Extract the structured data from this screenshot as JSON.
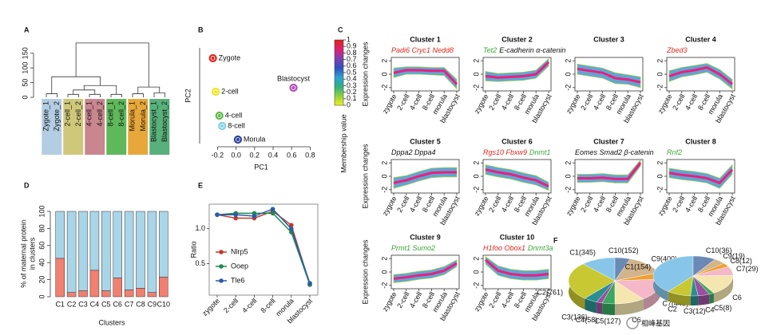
{
  "panels": [
    "A",
    "B",
    "C",
    "D",
    "E",
    "F"
  ],
  "watermark": "相峰基因",
  "chart_data": [
    {
      "type": "dendrogram",
      "ylim": [
        0,
        190
      ],
      "yticks": [
        0,
        50,
        100,
        150
      ],
      "leaves": [
        "Zygote_1",
        "Zygote_2",
        "2-cell_1",
        "2-cell_2",
        "4-cell_1",
        "4-cell_2",
        "8-cell_1",
        "8-cell_2",
        "Morula_1",
        "Morula_2",
        "Blastocyst_1",
        "Blastocyst_2"
      ],
      "group_colors": [
        "#b3cde3",
        "#cfc77a",
        "#c9868f",
        "#5fb85a",
        "#e8a73a",
        "#58b07a"
      ],
      "merges": [
        {
          "left": 0,
          "right": 1,
          "height": 12
        },
        {
          "left": 2,
          "right": 3,
          "height": 10
        },
        {
          "left": 4,
          "right": 5,
          "height": 10
        },
        {
          "left": 6,
          "right": 7,
          "height": 10
        },
        {
          "left": 8,
          "right": 9,
          "height": 12
        },
        {
          "left": 10,
          "right": 11,
          "height": 15
        },
        {
          "left": 13,
          "right": 14,
          "height": 25
        },
        {
          "left": 18,
          "right": 15,
          "height": 40
        },
        {
          "left": 12,
          "right": 19,
          "height": 70
        },
        {
          "left": 16,
          "right": 17,
          "height": 35
        },
        {
          "left": 20,
          "right": 21,
          "height": 185
        }
      ]
    },
    {
      "type": "scatter",
      "xlabel": "PC1",
      "ylabel": "PC2",
      "xlim": [
        -0.35,
        0.9
      ],
      "xticks": [
        -0.2,
        {
          "value": 0,
          "label": "0.0"
        },
        0.2,
        0.4,
        0.6,
        0.8
      ],
      "ylim": [
        -0.6,
        0.6
      ],
      "labels": [
        "Zygote",
        "2-cell",
        "4-cell",
        "8-cell",
        "Morula",
        "Blastocyst"
      ],
      "x": [
        -0.25,
        -0.22,
        -0.18,
        -0.15,
        0.02,
        0.62
      ],
      "y": [
        0.47,
        0.05,
        -0.25,
        -0.38,
        -0.55,
        0.1
      ],
      "colors": [
        "#e0261c",
        "#f2e422",
        "#5cb848",
        "#7fd0e0",
        "#2a3f9a",
        "#b04fb8"
      ]
    },
    {
      "type": "cluster-lines",
      "ylabel": "Expression changes",
      "categories": [
        "zygote",
        "2-cell",
        "4-cell",
        "8-cell",
        "morula",
        "blastocyst"
      ],
      "ylim": [
        -2.5,
        2.5
      ],
      "yticks": [
        -2,
        0,
        2
      ],
      "band_color": "#2f86c4",
      "line_color": "#e8207d",
      "colorbar": {
        "title": "Membership value",
        "ticks": [
          0,
          0.1,
          0.2,
          0.3,
          0.4,
          0.5,
          0.6,
          0.7,
          0.8,
          0.9,
          1
        ],
        "colors": [
          "#f0f020",
          "#8fd040",
          "#30b080",
          "#30a0d0",
          "#3050c0",
          "#8040b0",
          "#e02070",
          "#e0201c"
        ]
      },
      "clusters": [
        {
          "title": "Cluster 1",
          "genes": [
            {
              "text": "Padi6 Cryc1 Nedd8",
              "color": "#e0261c"
            }
          ],
          "values": [
            0.2,
            0.6,
            0.6,
            0.5,
            0.5,
            -1.5
          ],
          "lower": [
            -0.5,
            0,
            0,
            -0.1,
            -0.2,
            -2.2
          ],
          "upper": [
            0.9,
            1.1,
            1.1,
            1,
            1,
            -0.8
          ]
        },
        {
          "title": "Cluster 2",
          "genes": [
            {
              "text": "Tet2",
              "color": "#3aa63a"
            },
            {
              "text": "E-cadherin α-catenin",
              "color": "#111111"
            }
          ],
          "values": [
            -0.3,
            -0.5,
            -0.4,
            -0.3,
            0,
            1.8
          ],
          "lower": [
            -1,
            -1.1,
            -1,
            -0.9,
            -0.6,
            1.2
          ],
          "upper": [
            0.4,
            0.1,
            0.2,
            0.3,
            0.6,
            2.3
          ]
        },
        {
          "title": "Cluster 3",
          "genes": [],
          "values": [
            0.8,
            0.5,
            0.2,
            -0.6,
            -0.8,
            -1.2
          ],
          "lower": [
            0,
            -0.3,
            -0.6,
            -1.4,
            -1.5,
            -2
          ],
          "upper": [
            1.5,
            1.2,
            0.9,
            0.2,
            -0.1,
            -0.4
          ]
        },
        {
          "title": "Cluster 4",
          "genes": [
            {
              "text": "Zbed3",
              "color": "#e0261c"
            }
          ],
          "values": [
            -0.3,
            0.3,
            0.6,
            1,
            0,
            -1.5
          ],
          "lower": [
            -1.1,
            -0.4,
            -0.1,
            0.3,
            -0.7,
            -2.2
          ],
          "upper": [
            0.5,
            1,
            1.3,
            1.6,
            0.7,
            -0.8
          ]
        },
        {
          "title": "Cluster 5",
          "genes": [
            {
              "text": "Dppa2 Dppa4",
              "color": "#111111"
            }
          ],
          "values": [
            -1,
            -0.6,
            0,
            0.5,
            0.6,
            0.6
          ],
          "lower": [
            -1.8,
            -1.3,
            -0.7,
            -0.2,
            -0.1,
            -0.1
          ],
          "upper": [
            -0.2,
            0.1,
            0.7,
            1.2,
            1.3,
            1.3
          ]
        },
        {
          "title": "Cluster 6",
          "genes": [
            {
              "text": "Rgs10 Fbxw9",
              "color": "#e0261c"
            },
            {
              "text": "Dnmt1",
              "color": "#3aa63a"
            }
          ],
          "values": [
            1,
            0.6,
            0.3,
            -0.2,
            -0.6,
            -1.5
          ],
          "lower": [
            0.3,
            -0.1,
            -0.4,
            -0.9,
            -1.3,
            -2.1
          ],
          "upper": [
            1.7,
            1.3,
            1,
            0.5,
            0.1,
            -0.9
          ]
        },
        {
          "title": "Cluster 7",
          "genes": [
            {
              "text": "Eomes Smad2 β-catenin",
              "color": "#111111"
            }
          ],
          "values": [
            -0.3,
            -0.3,
            -0.2,
            -0.4,
            -0.4,
            2
          ],
          "lower": [
            -0.9,
            -0.9,
            -0.8,
            -1,
            -1,
            1.5
          ],
          "upper": [
            0.3,
            0.3,
            0.4,
            0.2,
            0.2,
            2.4
          ]
        },
        {
          "title": "Cluster 8",
          "genes": [
            {
              "text": "Rnf2",
              "color": "#3aa63a"
            }
          ],
          "values": [
            0.5,
            0.2,
            0,
            -0.3,
            -1,
            1
          ],
          "lower": [
            -0.2,
            -0.5,
            -0.7,
            -1,
            -1.8,
            0.3
          ],
          "upper": [
            1.2,
            0.9,
            0.7,
            0.4,
            -0.3,
            1.7
          ]
        },
        {
          "title": "Cluster 9",
          "genes": [
            {
              "text": "Prmt1 Sumo2",
              "color": "#3aa63a"
            }
          ],
          "values": [
            -1,
            -0.8,
            -0.5,
            -0.3,
            0.2,
            1.3
          ],
          "lower": [
            -1.6,
            -1.4,
            -1.1,
            -0.9,
            -0.4,
            0.8
          ],
          "upper": [
            -0.4,
            -0.2,
            0.1,
            0.3,
            0.8,
            1.8
          ]
        },
        {
          "title": "Cluster 10",
          "genes": [
            {
              "text": "H1foo Obox1",
              "color": "#e0261c"
            },
            {
              "text": "Dnmt3a",
              "color": "#3aa63a"
            }
          ],
          "values": [
            1.8,
            0.2,
            -0.3,
            -0.5,
            -0.5,
            -0.3
          ],
          "lower": [
            1.2,
            -0.5,
            -1,
            -1.2,
            -1.2,
            -1
          ],
          "upper": [
            2.3,
            0.9,
            0.4,
            0.2,
            0.2,
            0.4
          ]
        }
      ]
    },
    {
      "type": "stacked-bar",
      "ylabel": [
        "% of maternal protein",
        "in clusters"
      ],
      "xlabel": "Clusters",
      "categories": [
        "C1",
        "C2",
        "C3",
        "C4",
        "C5",
        "C6",
        "C7",
        "C8",
        "C9",
        "C10"
      ],
      "ylim": [
        0,
        100
      ],
      "yticks": [
        0,
        20,
        40,
        60,
        80,
        100
      ],
      "series": [
        {
          "color": "#f08070",
          "values": [
            45,
            5,
            7,
            31,
            7,
            22,
            8,
            10,
            5,
            23
          ]
        },
        {
          "color": "#a9d5e8",
          "values": [
            55,
            95,
            93,
            69,
            93,
            78,
            92,
            90,
            95,
            77
          ]
        }
      ]
    },
    {
      "type": "line",
      "ylabel": "Ratio",
      "categories": [
        "zygote",
        "2-cell",
        "4-cell",
        "8-cell",
        "morula",
        "blastocyst"
      ],
      "ylim": [
        0.05,
        1.35
      ],
      "yticks": [
        0.5,
        {
          "value": 1,
          "label": "1.0"
        }
      ],
      "series": [
        {
          "name": "Nlrp5",
          "color": "#c0392b",
          "values": [
            1.2,
            1.15,
            1.15,
            1.25,
            1.05,
            0.2
          ]
        },
        {
          "name": "Ooep",
          "color": "#1e8a4a",
          "values": [
            1.2,
            1.22,
            1.22,
            1.22,
            0.95,
            0.2
          ]
        },
        {
          "name": "Tle6",
          "color": "#2a5caa",
          "values": [
            1.2,
            1.2,
            1.18,
            1.28,
            1.0,
            0.22
          ]
        }
      ]
    },
    {
      "type": "pie3d",
      "pies": [
        {
          "categories": [
            "C1(345)",
            "C2(761)",
            "C3(136)",
            "C4(58)",
            "C5(127)",
            "C6",
            "C7(445)",
            "C8(128)",
            "C9(400)",
            "C10(152)"
          ],
          "values": [
            345,
            761,
            136,
            58,
            127,
            300,
            445,
            128,
            400,
            152
          ],
          "colors": [
            "#87c6e8",
            "#c8c832",
            "#2a8f8f",
            "#9a4fa0",
            "#3aa860",
            "#f5e6b0",
            "#f4b8c8",
            "#f0a030",
            "#d2b48c",
            "#6a8ab5"
          ]
        },
        {
          "categories": [
            "C1(154)",
            "C2",
            "C3(12)",
            "C4",
            "C5(8)",
            "C6",
            "C7(29)",
            "C8(12)",
            "C9(19)",
            "C10(36)"
          ],
          "values": [
            154,
            38,
            12,
            18,
            8,
            66,
            29,
            12,
            19,
            36
          ],
          "colors": [
            "#87c6e8",
            "#c8c832",
            "#2a8f8f",
            "#9a4fa0",
            "#3aa860",
            "#f5e6b0",
            "#f4b8c8",
            "#f0a030",
            "#d2b48c",
            "#6a8ab5"
          ]
        }
      ]
    }
  ]
}
